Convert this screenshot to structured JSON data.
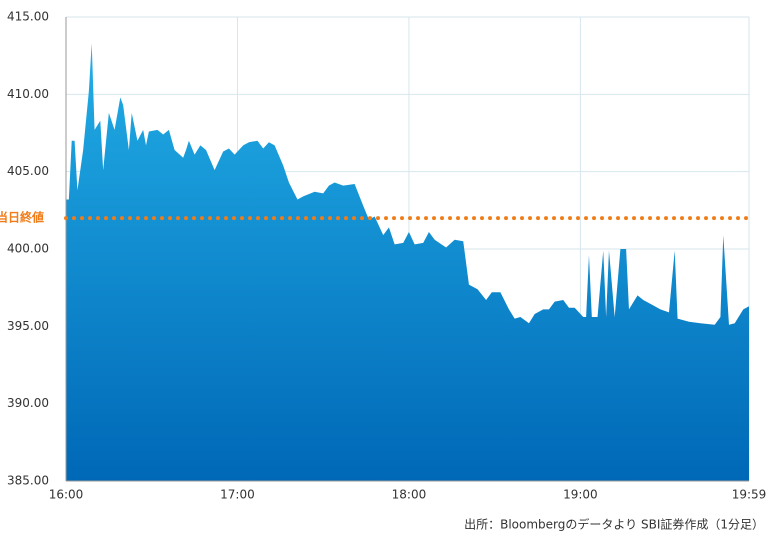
{
  "chart_data": {
    "type": "area",
    "source": "出所：Bloombergのデータより SBI証券作成（1分足）",
    "x": [
      "16:00",
      "16:01",
      "16:02",
      "16:03",
      "16:04",
      "16:06",
      "16:08",
      "16:09",
      "16:10",
      "16:12",
      "16:13",
      "16:15",
      "16:17",
      "16:19",
      "16:20",
      "16:22",
      "16:23",
      "16:25",
      "16:27",
      "16:28",
      "16:29",
      "16:32",
      "16:34",
      "16:36",
      "16:38",
      "16:41",
      "16:42",
      "16:43",
      "16:45",
      "16:47",
      "16:49",
      "16:52",
      "16:55",
      "16:57",
      "16:59",
      "17:02",
      "17:04",
      "17:07",
      "17:09",
      "17:11",
      "17:13",
      "17:16",
      "17:18",
      "17:21",
      "17:23",
      "17:27",
      "17:30",
      "17:32",
      "17:34",
      "17:37",
      "17:41",
      "17:44",
      "17:46",
      "17:48",
      "17:51",
      "17:53",
      "17:55",
      "17:58",
      "18:00",
      "18:02",
      "18:05",
      "18:07",
      "18:09",
      "18:13",
      "18:16",
      "18:19",
      "18:21",
      "18:24",
      "18:27",
      "18:29",
      "18:32",
      "18:35",
      "18:37",
      "18:39",
      "18:42",
      "18:44",
      "18:47",
      "18:49",
      "18:51",
      "18:54",
      "18:56",
      "18:58",
      "19:01",
      "19:02",
      "19:03",
      "19:04",
      "19:06",
      "19:08",
      "19:09",
      "19:10",
      "19:12",
      "19:14",
      "19:16",
      "19:17",
      "19:20",
      "19:22",
      "19:25",
      "19:28",
      "19:31",
      "19:33",
      "19:34",
      "19:38",
      "19:42",
      "19:47",
      "19:49",
      "19:50",
      "19:52",
      "19:54",
      "19:57",
      "19:59"
    ],
    "values": [
      403.2,
      403.2,
      407.0,
      407.0,
      403.8,
      406.4,
      410.2,
      413.3,
      407.7,
      408.3,
      405.1,
      408.8,
      407.7,
      409.8,
      409.3,
      406.4,
      408.8,
      407.0,
      407.7,
      406.7,
      407.6,
      407.7,
      407.4,
      407.7,
      406.4,
      405.9,
      406.4,
      407.0,
      406.1,
      406.7,
      406.4,
      405.1,
      406.3,
      406.5,
      406.1,
      406.7,
      406.9,
      407.0,
      406.5,
      406.9,
      406.7,
      405.4,
      404.3,
      403.2,
      403.4,
      403.7,
      403.6,
      404.1,
      404.3,
      404.1,
      404.2,
      402.8,
      401.9,
      402.1,
      400.9,
      401.4,
      400.3,
      400.4,
      401.1,
      400.3,
      400.4,
      401.1,
      400.6,
      400.1,
      400.6,
      400.5,
      397.7,
      397.4,
      396.7,
      397.2,
      397.2,
      396.1,
      395.5,
      395.6,
      395.2,
      395.8,
      396.1,
      396.1,
      396.6,
      396.7,
      396.2,
      396.2,
      395.6,
      395.6,
      399.6,
      395.6,
      395.6,
      399.9,
      395.6,
      399.9,
      395.6,
      400.0,
      400.0,
      396.1,
      397.0,
      396.7,
      396.4,
      396.1,
      395.9,
      399.9,
      395.5,
      395.3,
      395.2,
      395.1,
      395.6,
      400.9,
      395.1,
      395.2,
      396.1,
      396.3
    ],
    "color_top": "#22aee6",
    "color_bottom": "#0068b7",
    "xlim": [
      "16:00",
      "19:59"
    ],
    "xticks": [
      "16:00",
      "17:00",
      "18:00",
      "19:00",
      "19:59"
    ],
    "ylim": [
      385,
      415
    ],
    "yticks": [
      {
        "value": 385,
        "label": "385.00"
      },
      {
        "value": 390,
        "label": "390.00"
      },
      {
        "value": 395,
        "label": "395.00"
      },
      {
        "value": 400,
        "label": "400.00"
      },
      {
        "value": 405,
        "label": "405.00"
      },
      {
        "value": 410,
        "label": "410.00"
      },
      {
        "value": 415,
        "label": "415.00"
      }
    ],
    "grid": true,
    "reference_line": {
      "label": "当日終値",
      "value": 402.0,
      "color": "#f07d1a"
    }
  }
}
